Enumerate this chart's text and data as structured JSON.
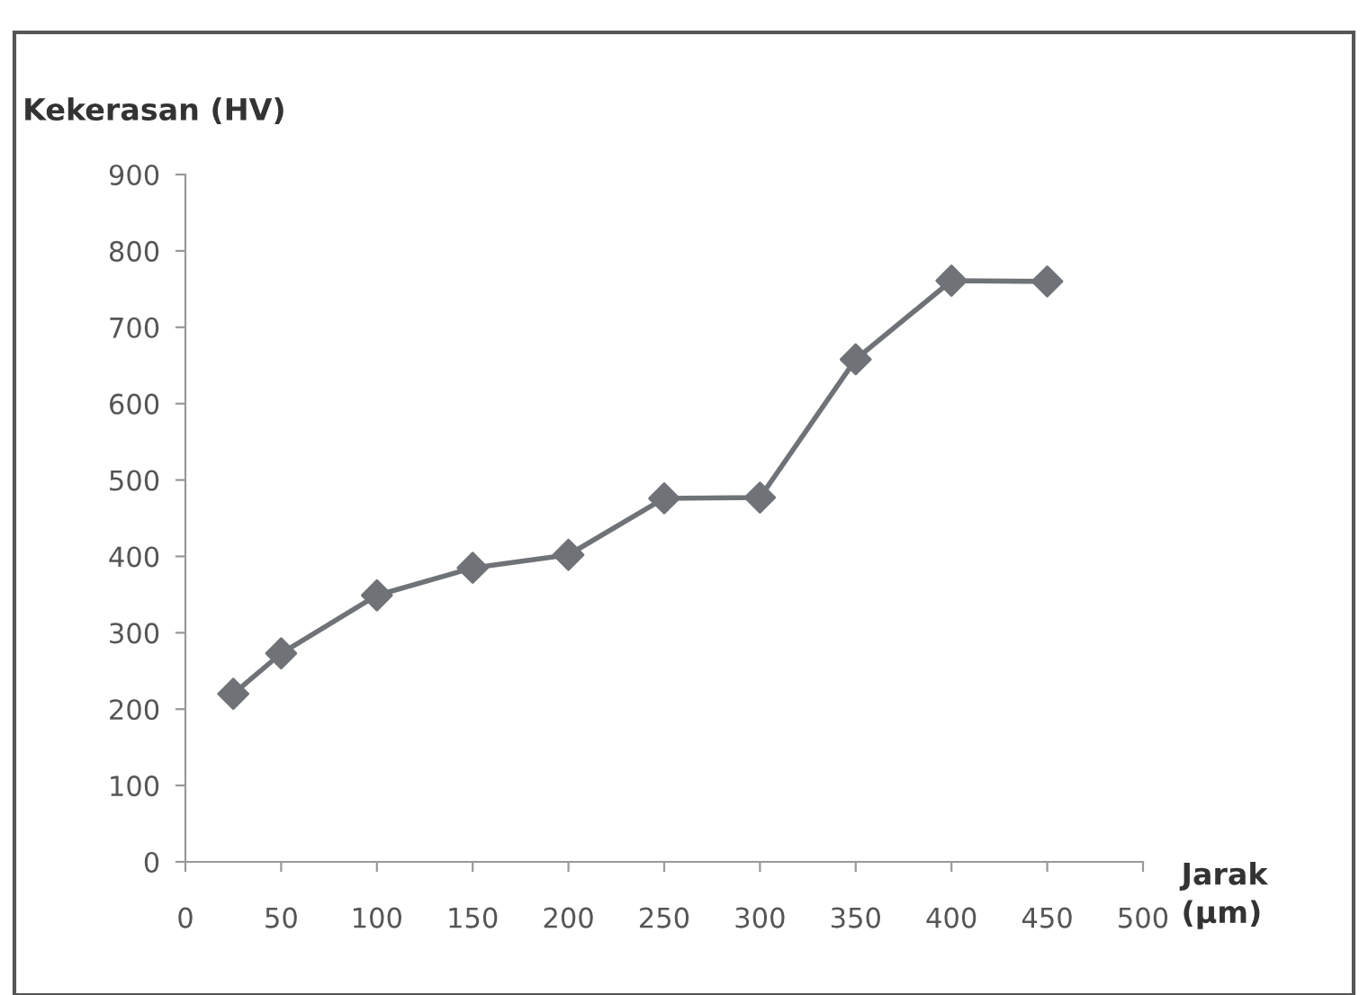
{
  "chart_data": {
    "type": "line",
    "ylabel": "Kekerasan (HV)",
    "xlabel": "Jarak\n(µm)",
    "x": [
      25,
      50,
      100,
      150,
      200,
      250,
      300,
      350,
      400,
      450
    ],
    "series": [
      {
        "color": "#6f7378",
        "values": [
          220,
          273,
          349,
          385,
          402,
          476,
          477,
          658,
          761,
          760
        ]
      }
    ],
    "xlim": [
      0,
      500
    ],
    "xticks": [
      0,
      50,
      100,
      150,
      200,
      250,
      300,
      350,
      400,
      450,
      500
    ],
    "ylim": [
      0,
      900
    ],
    "yticks": [
      0,
      100,
      200,
      300,
      400,
      500,
      600,
      700,
      800,
      900
    ],
    "grid": false,
    "legend": false,
    "marker": "diamond",
    "line_style": "solid"
  }
}
